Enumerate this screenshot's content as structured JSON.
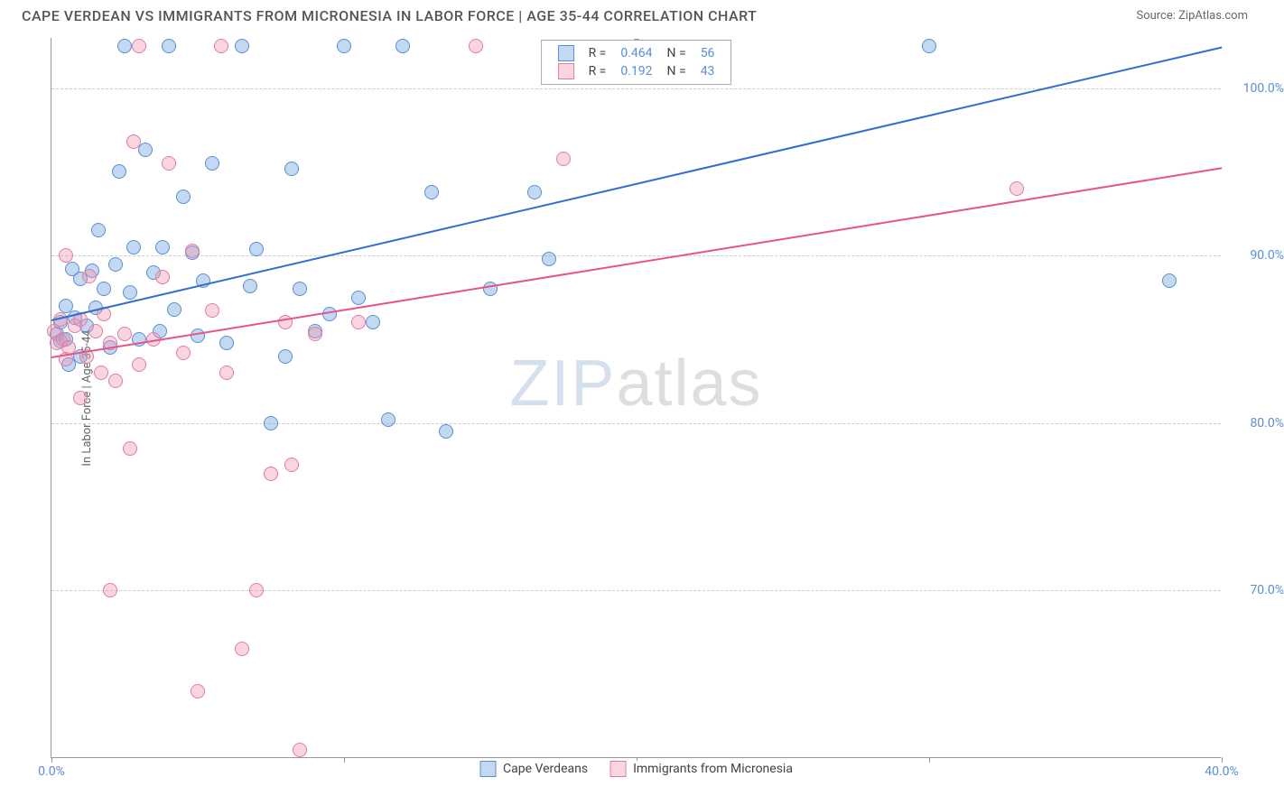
{
  "title": "CAPE VERDEAN VS IMMIGRANTS FROM MICRONESIA IN LABOR FORCE | AGE 35-44 CORRELATION CHART",
  "source": "Source: ZipAtlas.com",
  "y_axis_title": "In Labor Force | Age 35-44",
  "watermark_a": "ZIP",
  "watermark_b": "atlas",
  "chart": {
    "type": "scatter",
    "xlim": [
      0,
      40
    ],
    "ylim": [
      60,
      103
    ],
    "x_ticks": [
      0,
      10,
      20,
      30,
      40
    ],
    "x_tick_labels": [
      "0.0%",
      "",
      "",
      "",
      "40.0%"
    ],
    "y_ticks": [
      70,
      80,
      90,
      100
    ],
    "y_tick_labels": [
      "70.0%",
      "80.0%",
      "90.0%",
      "100.0%"
    ],
    "background_color": "#ffffff",
    "grid_color": "#cccccc",
    "axis_color": "#999999",
    "tick_label_color": "#5b8dd6",
    "marker_size": 16,
    "series": [
      {
        "name": "Cape Verdeans",
        "fill": "rgba(120,170,225,0.45)",
        "stroke": "#5b8dd6",
        "trend_color": "#2f6fd0",
        "R": "0.464",
        "N": "56",
        "trend": {
          "x1": 0,
          "y1": 86.2,
          "x2": 40,
          "y2": 102.5
        },
        "points": [
          [
            0.2,
            85.3
          ],
          [
            0.3,
            86.0
          ],
          [
            0.3,
            84.9
          ],
          [
            0.5,
            85.0
          ],
          [
            0.5,
            87.0
          ],
          [
            0.6,
            83.5
          ],
          [
            0.7,
            89.2
          ],
          [
            0.8,
            86.3
          ],
          [
            1.0,
            88.6
          ],
          [
            1.0,
            84.0
          ],
          [
            1.2,
            85.8
          ],
          [
            1.4,
            89.1
          ],
          [
            1.5,
            86.9
          ],
          [
            1.6,
            91.5
          ],
          [
            1.8,
            88.0
          ],
          [
            2.0,
            84.5
          ],
          [
            2.2,
            89.5
          ],
          [
            2.3,
            95.0
          ],
          [
            2.5,
            102.5
          ],
          [
            2.7,
            87.8
          ],
          [
            2.8,
            90.5
          ],
          [
            3.0,
            85.0
          ],
          [
            3.2,
            96.3
          ],
          [
            3.5,
            89.0
          ],
          [
            3.7,
            85.5
          ],
          [
            3.8,
            90.5
          ],
          [
            4.0,
            102.5
          ],
          [
            4.2,
            86.8
          ],
          [
            4.5,
            93.5
          ],
          [
            4.8,
            90.2
          ],
          [
            5.0,
            85.2
          ],
          [
            5.2,
            88.5
          ],
          [
            5.5,
            95.5
          ],
          [
            6.0,
            84.8
          ],
          [
            6.5,
            102.5
          ],
          [
            6.8,
            88.2
          ],
          [
            7.0,
            90.4
          ],
          [
            7.5,
            80.0
          ],
          [
            8.0,
            84.0
          ],
          [
            8.2,
            95.2
          ],
          [
            8.5,
            88.0
          ],
          [
            9.0,
            85.5
          ],
          [
            9.5,
            86.5
          ],
          [
            10.0,
            102.5
          ],
          [
            10.5,
            87.5
          ],
          [
            11.0,
            86.0
          ],
          [
            11.5,
            80.2
          ],
          [
            12.0,
            102.5
          ],
          [
            13.0,
            93.8
          ],
          [
            13.5,
            79.5
          ],
          [
            15.0,
            88.0
          ],
          [
            16.5,
            93.8
          ],
          [
            17.0,
            89.8
          ],
          [
            20.0,
            102.5
          ],
          [
            30.0,
            102.5
          ],
          [
            38.2,
            88.5
          ]
        ]
      },
      {
        "name": "Immigrants from Micronesia",
        "fill": "rgba(240,150,180,0.40)",
        "stroke": "#e47ba1",
        "trend_color": "#e7548b",
        "R": "0.192",
        "N": "43",
        "trend": {
          "x1": 0,
          "y1": 84.0,
          "x2": 40,
          "y2": 95.3
        },
        "points": [
          [
            0.1,
            85.5
          ],
          [
            0.2,
            84.8
          ],
          [
            0.3,
            86.2
          ],
          [
            0.4,
            85.0
          ],
          [
            0.5,
            83.8
          ],
          [
            0.5,
            90.0
          ],
          [
            0.6,
            84.5
          ],
          [
            0.8,
            85.8
          ],
          [
            1.0,
            86.2
          ],
          [
            1.0,
            81.5
          ],
          [
            1.2,
            84.0
          ],
          [
            1.3,
            88.8
          ],
          [
            1.5,
            85.5
          ],
          [
            1.7,
            83.0
          ],
          [
            1.8,
            86.5
          ],
          [
            2.0,
            84.8
          ],
          [
            2.0,
            70.0
          ],
          [
            2.2,
            82.5
          ],
          [
            2.5,
            85.3
          ],
          [
            2.7,
            78.5
          ],
          [
            2.8,
            96.8
          ],
          [
            3.0,
            83.5
          ],
          [
            3.0,
            102.5
          ],
          [
            3.5,
            85.0
          ],
          [
            3.8,
            88.7
          ],
          [
            4.0,
            95.5
          ],
          [
            4.5,
            84.2
          ],
          [
            4.8,
            90.3
          ],
          [
            5.0,
            64.0
          ],
          [
            5.5,
            86.7
          ],
          [
            5.8,
            102.5
          ],
          [
            6.0,
            83.0
          ],
          [
            6.5,
            66.5
          ],
          [
            7.0,
            70.0
          ],
          [
            7.5,
            77.0
          ],
          [
            8.0,
            86.0
          ],
          [
            8.2,
            77.5
          ],
          [
            8.5,
            60.5
          ],
          [
            9.0,
            85.3
          ],
          [
            10.5,
            86.0
          ],
          [
            14.5,
            102.5
          ],
          [
            17.5,
            95.8
          ],
          [
            33.0,
            94.0
          ]
        ]
      }
    ]
  },
  "legend_box": {
    "rows": [
      {
        "swatch_fill": "rgba(120,170,225,0.45)",
        "swatch_stroke": "#5b8dd6",
        "R_label": "R =",
        "R": "0.464",
        "N_label": "N =",
        "N": "56"
      },
      {
        "swatch_fill": "rgba(240,150,180,0.40)",
        "swatch_stroke": "#e47ba1",
        "R_label": "R =",
        "R": "0.192",
        "N_label": "N =",
        "N": "43"
      }
    ]
  },
  "bottom_legend": [
    {
      "swatch_fill": "rgba(120,170,225,0.45)",
      "swatch_stroke": "#5b8dd6",
      "label": "Cape Verdeans"
    },
    {
      "swatch_fill": "rgba(240,150,180,0.40)",
      "swatch_stroke": "#e47ba1",
      "label": "Immigrants from Micronesia"
    }
  ]
}
